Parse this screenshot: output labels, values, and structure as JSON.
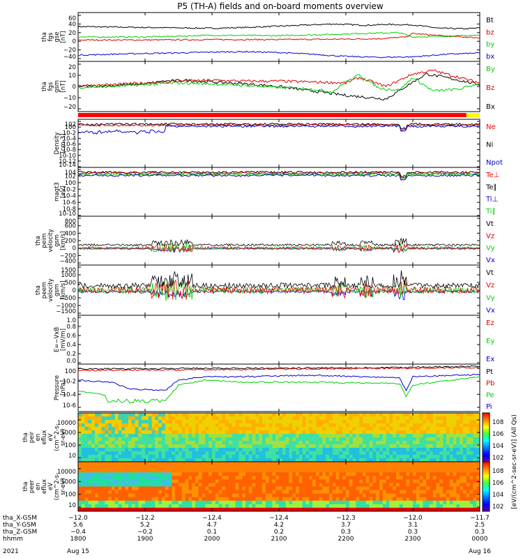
{
  "title": "P5 (TH-A) fields and on-board moments overview",
  "colors": {
    "black": "#000000",
    "red": "#e00000",
    "green": "#00d000",
    "blue": "#0000d0",
    "status_red": "#ff0000",
    "status_yellow": "#ffff00"
  },
  "chart_data": {
    "type": "line",
    "x_range_hours": [
      18.0,
      24.0
    ],
    "panels": [
      {
        "id": "fgs_gse",
        "ylabel": [
          "tha",
          "fgs",
          "gse",
          "[nT]"
        ],
        "ylim": [
          -40,
          60
        ],
        "scale": "linear",
        "yticks": [
          "60",
          "40",
          "20",
          "0",
          "−20",
          "−40"
        ],
        "legend": [
          {
            "name": "Bt",
            "color": "black"
          },
          {
            "name": "bz",
            "color": "red"
          },
          {
            "name": "by",
            "color": "green"
          },
          {
            "name": "bx",
            "color": "blue"
          }
        ],
        "series": [
          {
            "name": "Bt",
            "color": "black",
            "x": [
              18.0,
              18.5,
              19.0,
              19.5,
              20.0,
              20.5,
              21.0,
              21.5,
              21.8,
              22.0,
              22.3,
              22.6,
              23.0,
              23.4,
              23.8,
              24.0
            ],
            "y": [
              34,
              33,
              32,
              31,
              30,
              32,
              35,
              38,
              40,
              39,
              37,
              39,
              38,
              30,
              29,
              31
            ]
          },
          {
            "name": "bz",
            "color": "red",
            "x": [
              18.0,
              19.0,
              20.0,
              21.0,
              22.0,
              22.5,
              22.9,
              23.0,
              23.5,
              24.0
            ],
            "y": [
              3,
              3,
              4,
              4,
              5,
              6,
              10,
              18,
              12,
              8
            ]
          },
          {
            "name": "by",
            "color": "green",
            "x": [
              18.0,
              19.0,
              20.0,
              21.0,
              21.8,
              22.2,
              22.8,
              23.0,
              23.5,
              24.0
            ],
            "y": [
              10,
              10,
              14,
              13,
              16,
              18,
              20,
              10,
              12,
              14
            ]
          },
          {
            "name": "bx",
            "color": "blue",
            "x": [
              18.0,
              18.5,
              19.0,
              19.5,
              20.0,
              20.5,
              21.0,
              21.5,
              21.8,
              22.0,
              22.5,
              23.0,
              23.5,
              24.0
            ],
            "y": [
              -32,
              -30,
              -28,
              -27,
              -25,
              -24,
              -26,
              -30,
              -33,
              -35,
              -37,
              -36,
              -30,
              -27
            ]
          }
        ]
      },
      {
        "id": "fgs_gsm",
        "ylabel": [
          "tha",
          "fgs",
          "gsm",
          "[nT]"
        ],
        "ylim": [
          -25,
          25
        ],
        "scale": "linear",
        "yticks": [
          "20",
          "10",
          "0",
          "−10",
          "−20"
        ],
        "legend": [
          {
            "name": "By",
            "color": "green"
          },
          {
            "name": "Bz",
            "color": "red"
          },
          {
            "name": "Bx",
            "color": "black"
          }
        ],
        "series": [
          {
            "name": "Bx",
            "color": "black",
            "x": [
              18.0,
              18.5,
              19.0,
              19.3,
              19.6,
              20.0,
              20.5,
              21.0,
              21.5,
              21.8,
              22.0,
              22.3,
              22.6,
              23.0,
              23.2,
              23.5,
              24.0
            ],
            "y": [
              0,
              1,
              3,
              6,
              7,
              5,
              3,
              0,
              -5,
              -8,
              -10,
              -12,
              -14,
              5,
              14,
              10,
              2
            ]
          },
          {
            "name": "Bz",
            "color": "red",
            "x": [
              18.0,
              18.5,
              19.0,
              19.5,
              20.0,
              20.5,
              21.0,
              21.5,
              22.0,
              22.2,
              22.6,
              23.0,
              23.3,
              23.7,
              24.0
            ],
            "y": [
              1,
              2,
              4,
              6,
              7,
              6,
              6,
              5,
              4,
              10,
              0,
              14,
              18,
              10,
              4
            ]
          },
          {
            "name": "By",
            "color": "green",
            "x": [
              18.0,
              18.5,
              19.0,
              19.5,
              20.0,
              20.5,
              21.0,
              21.5,
              21.8,
              22.0,
              22.2,
              22.5,
              22.8,
              23.0,
              23.3,
              23.7,
              24.0
            ],
            "y": [
              -1,
              0,
              2,
              4,
              3,
              1,
              -1,
              -3,
              -6,
              5,
              13,
              -2,
              -4,
              10,
              -5,
              -3,
              4
            ]
          }
        ]
      }
    ],
    "status_bar": [
      {
        "from": 18.0,
        "to": 23.8,
        "color": "status_red"
      },
      {
        "from": 23.8,
        "to": 24.0,
        "color": "status_yellow"
      }
    ],
    "log_panels": [
      {
        "id": "density",
        "ylabel": [
          "Density",
          "[cm-3]"
        ],
        "yticks": [
          "10^2",
          "10^0",
          "10^-2",
          "10^-4",
          "10^-6",
          "10^-8",
          "10^-10",
          "10^-12",
          "10^-14"
        ],
        "legend": [
          {
            "name": "Ne",
            "color": "red"
          },
          {
            "name": "Ni",
            "color": "black"
          },
          {
            "name": "Npot",
            "color": "blue"
          }
        ]
      },
      {
        "id": "magt3",
        "ylabel": [
          "magt3",
          "[eV]"
        ],
        "yticks": [
          "10^4",
          "10^2",
          "10^0",
          "10^-2",
          "10^-4",
          "10^-6",
          "10^-8",
          "10^-10"
        ],
        "legend": [
          {
            "name": "Te⊥",
            "color": "red"
          },
          {
            "name": "Te∥",
            "color": "black"
          },
          {
            "name": "Ti⊥",
            "color": "blue"
          },
          {
            "name": "Ti∥",
            "color": "green"
          }
        ]
      }
    ],
    "velocity_panels": [
      {
        "id": "peim_velocity",
        "ylabel": [
          "tha",
          "peim",
          "velocity",
          "gsm",
          "[km/s]"
        ],
        "yticks": [
          "800",
          "600",
          "400",
          "200",
          "0",
          "−200",
          "−400"
        ],
        "legend": [
          {
            "name": "Vt",
            "color": "black"
          },
          {
            "name": "Vz",
            "color": "red"
          },
          {
            "name": "Vy",
            "color": "green"
          },
          {
            "name": "Vx",
            "color": "blue"
          }
        ]
      },
      {
        "id": "peem_velocity",
        "ylabel": [
          "tha",
          "peem",
          "velocity",
          "gsm",
          "[km/s]"
        ],
        "yticks": [
          "1500",
          "1000",
          "500",
          "0",
          "−500",
          "−1000",
          "−1500"
        ],
        "legend": [
          {
            "name": "Vt",
            "color": "black"
          },
          {
            "name": "Vz",
            "color": "red"
          },
          {
            "name": "Vy",
            "color": "green"
          },
          {
            "name": "Vx",
            "color": "blue"
          }
        ]
      }
    ],
    "efield_panel": {
      "id": "e_field",
      "ylabel": [
        "E=−VxB",
        "[mV/m]"
      ],
      "yticks": [
        "1.0",
        "0.8",
        "0.6",
        "0.4",
        "0.2",
        "0.0"
      ],
      "legend": [
        {
          "name": "Ez",
          "color": "red"
        },
        {
          "name": "Ey",
          "color": "green"
        },
        {
          "name": "Ex",
          "color": "blue"
        }
      ]
    },
    "pressure_panel": {
      "id": "pressure",
      "ylabel": [
        "Pressure",
        "[nPa]"
      ],
      "yticks": [
        "10^0",
        "10^-2",
        "10^-4",
        "10^-6"
      ],
      "legend": [
        {
          "name": "Pt",
          "color": "black"
        },
        {
          "name": "Pb",
          "color": "red"
        },
        {
          "name": "Pe",
          "color": "green"
        },
        {
          "name": "Pi",
          "color": "blue"
        }
      ]
    },
    "spectrograms": [
      {
        "id": "peir_en_eflux",
        "ylabel": [
          "tha",
          "peir",
          "en",
          "eflux",
          "eV",
          "(cm^2-s-",
          "sr-eV)"
        ],
        "yticks": [
          "10000",
          "1000",
          "100",
          "10"
        ]
      },
      {
        "id": "peer_en_eflux",
        "ylabel": [
          "tha",
          "peer",
          "en",
          "eflux",
          "eV",
          "(cm^2-s-",
          "sr-eV)"
        ],
        "yticks": [
          "10000",
          "1000",
          "100",
          "10"
        ]
      }
    ],
    "colorbar": {
      "label": "[eV/(cm^2-sec-sr-eV)] (All Qs)",
      "ticks_top": [
        "10^8",
        "10^6",
        "10^4",
        "10^2"
      ],
      "ticks_bottom": [
        "10^8",
        "10^6",
        "10^4",
        "10^2"
      ]
    },
    "xaxis": {
      "rows": [
        {
          "label": "tha_X-GSM",
          "values": [
            "−12.0",
            "−12.2",
            "−12.4",
            "−12.4",
            "−12.3",
            "−12.0",
            "−11.7"
          ]
        },
        {
          "label": "tha_Y-GSM",
          "values": [
            "5.6",
            "5.2",
            "4.7",
            "4.2",
            "3.7",
            "3.1",
            "2.5"
          ]
        },
        {
          "label": "tha_Z-GSM",
          "values": [
            "−0.4",
            "−0.2",
            "0.1",
            "0.2",
            "0.3",
            "0.3",
            "0.3"
          ]
        },
        {
          "label": "hhmm",
          "values": [
            "1800",
            "1900",
            "2000",
            "2100",
            "2200",
            "2300",
            "0000"
          ]
        }
      ],
      "year": "2021",
      "date_start": "Aug 15",
      "date_end": "Aug 16"
    }
  }
}
